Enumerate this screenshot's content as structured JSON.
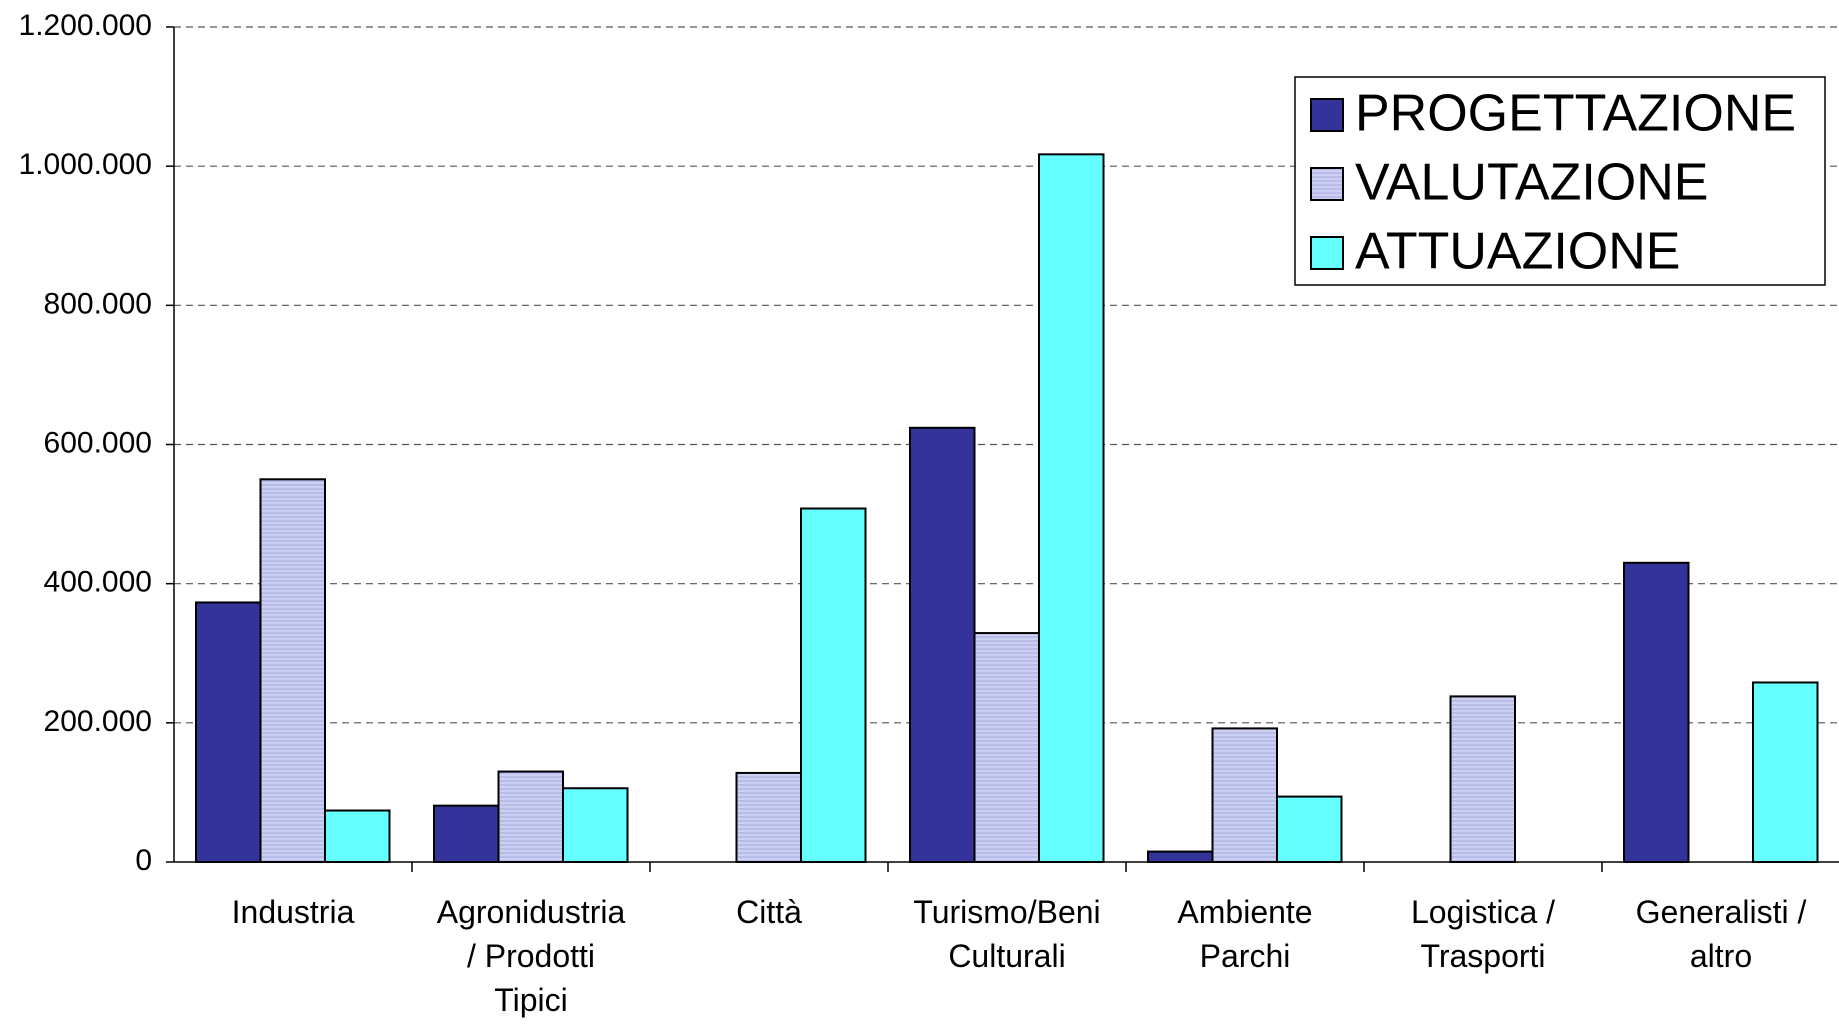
{
  "chart_data": {
    "type": "bar",
    "categories": [
      "Industria",
      "Agronidustria\n/ Prodotti\nTipici",
      "Città",
      "Turismo/Beni\nCulturali",
      "Ambiente\nParchi",
      "Logistica /\nTrasporti",
      "Generalisti /\naltro"
    ],
    "series": [
      {
        "name": "PROGETTAZIONE",
        "color": "#333399",
        "values": [
          373000,
          81000,
          0,
          624000,
          15000,
          0,
          430000
        ]
      },
      {
        "name": "VALUTAZIONE",
        "color": "#ccd0f4",
        "values": [
          550000,
          130000,
          128000,
          329000,
          192000,
          238000,
          0
        ]
      },
      {
        "name": "ATTUAZIONE",
        "color": "#66ffff",
        "values": [
          74000,
          106000,
          508000,
          1017000,
          94000,
          0,
          258000
        ]
      }
    ],
    "ylim": [
      0,
      1200000
    ],
    "yticks": [
      0,
      {
        "value": 200000,
        "label": "200.000"
      },
      {
        "value": 400000,
        "label": "400.000"
      },
      {
        "value": 600000,
        "label": "600.000"
      },
      {
        "value": 800000,
        "label": "800.000"
      },
      {
        "value": 1000000,
        "label": "1.000.000"
      },
      {
        "value": 1200000,
        "label": "1.200.000"
      }
    ],
    "grid": true,
    "legend": "upper right"
  }
}
